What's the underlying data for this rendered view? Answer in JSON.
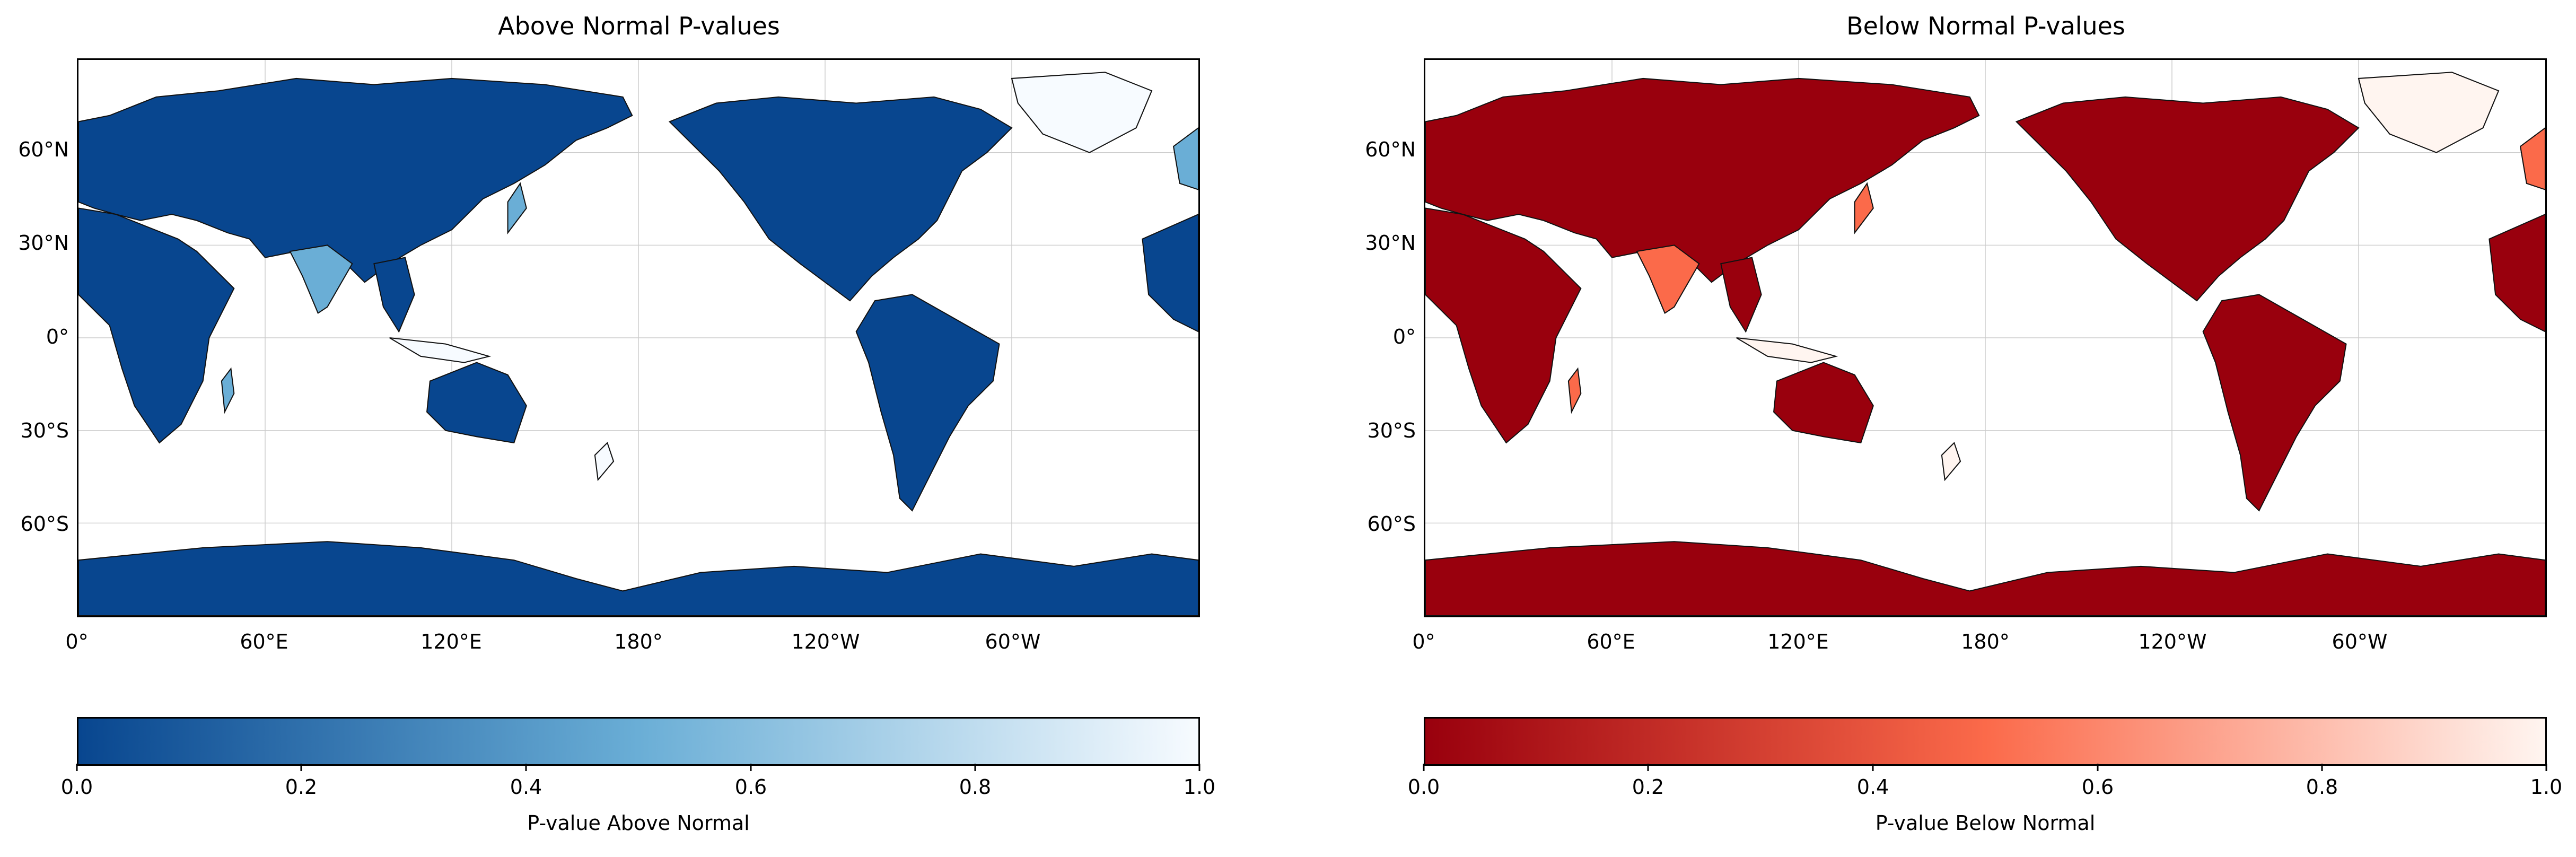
{
  "panels": [
    {
      "title": "Above Normal P-values",
      "colorbar_label": "P-value Above Normal",
      "colormap": "Blues_r",
      "colors": {
        "low": "#08468f",
        "mid": "#6aaed6",
        "high": "#f7fbff"
      }
    },
    {
      "title": "Below Normal P-values",
      "colorbar_label": "P-value Below Normal",
      "colormap": "Reds_r",
      "colors": {
        "low": "#99000d",
        "mid": "#fb6a4a",
        "high": "#fff5f0"
      }
    }
  ],
  "x_ticks": [
    "0°",
    "60°E",
    "120°E",
    "180°",
    "120°W",
    "60°W"
  ],
  "y_ticks": [
    "60°N",
    "30°N",
    "0°",
    "30°S",
    "60°S"
  ],
  "colorbar_ticks": [
    "0.0",
    "0.2",
    "0.4",
    "0.6",
    "0.8",
    "1.0"
  ]
}
